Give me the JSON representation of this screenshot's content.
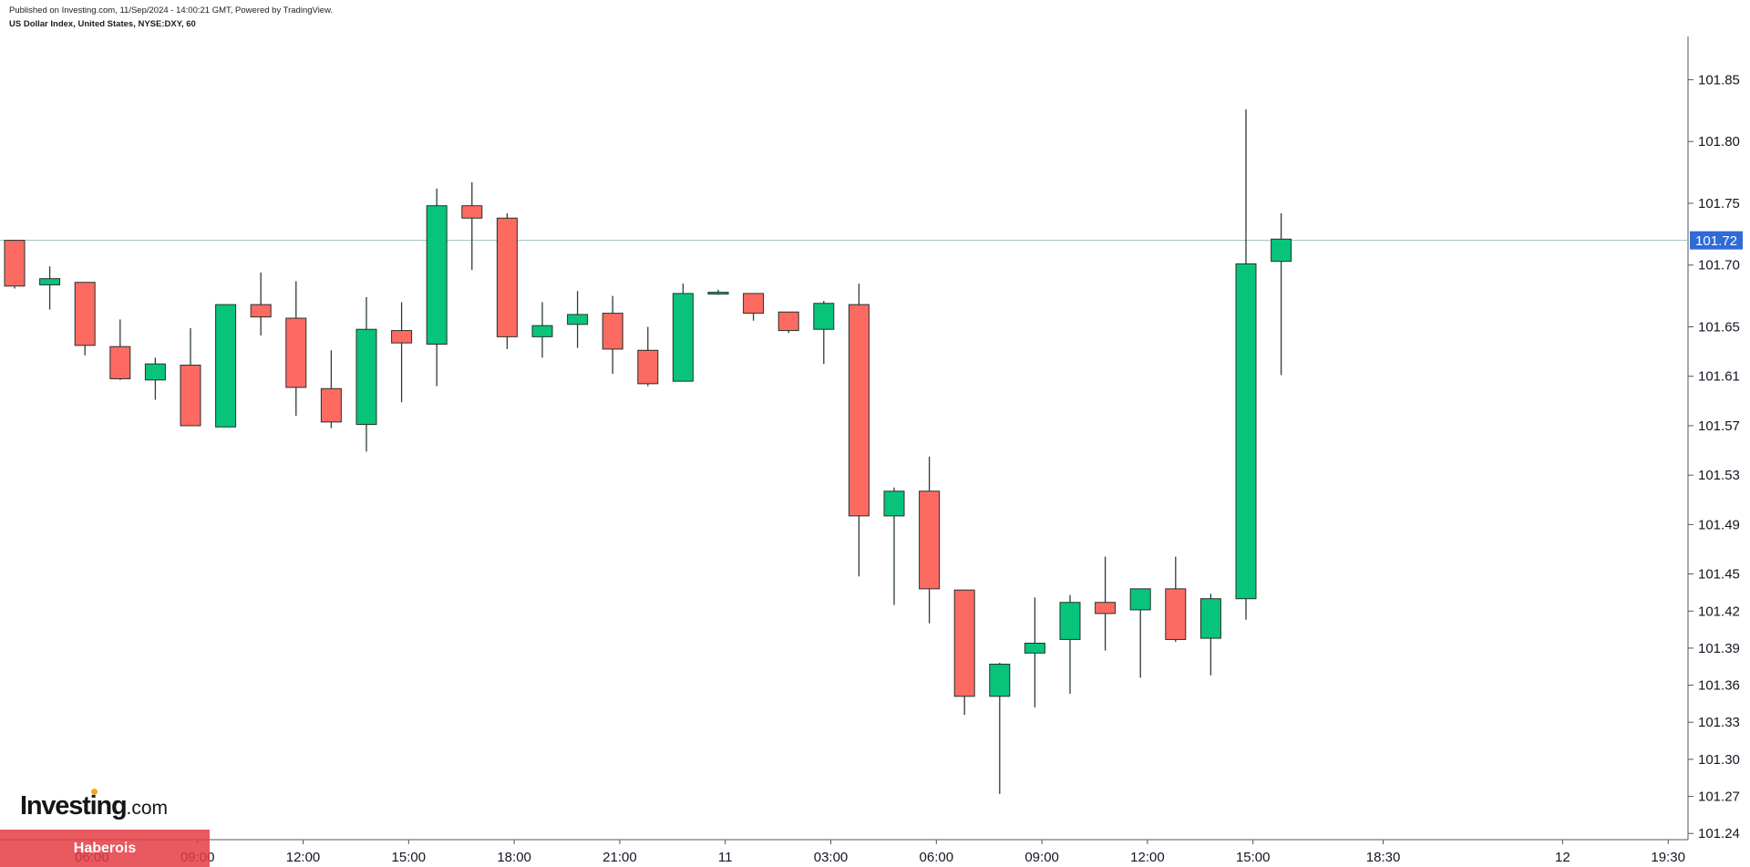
{
  "header": {
    "published": "Published on Investing.com, 11/Sep/2024 - 14:00:21 GMT, Powered by TradingView.",
    "symbol": "US Dollar Index, United States, NYSE:DXY, 60"
  },
  "logo": {
    "main": "Investing",
    "dotcom": ".com"
  },
  "banner": {
    "text": "Haberois"
  },
  "colors": {
    "up": "#08c47a",
    "down": "#fd6a62",
    "wick": "#2c3e35",
    "price_line": "#9fc3bd",
    "price_tag_bg": "#2f6ad7",
    "axis": "#b7bcc4",
    "text": "#131722"
  },
  "chart_data": {
    "type": "candlestick",
    "ylim": [
      101.235,
      101.885
    ],
    "grid": false,
    "last_price": 101.72,
    "last_price_label": "101.72",
    "y_ticks": [
      "101.85",
      "101.80",
      "101.75",
      "101.70",
      "101.65",
      "101.61",
      "101.57",
      "101.53",
      "101.49",
      "101.45",
      "101.42",
      "101.39",
      "101.36",
      "101.33",
      "101.30",
      "101.27",
      "101.24"
    ],
    "x_ticks": [
      {
        "label": "06:00",
        "slot": 2.2
      },
      {
        "label": "09:00",
        "slot": 5.2
      },
      {
        "label": "12:00",
        "slot": 8.2
      },
      {
        "label": "15:00",
        "slot": 11.2
      },
      {
        "label": "18:00",
        "slot": 14.2
      },
      {
        "label": "21:00",
        "slot": 17.2
      },
      {
        "label": "11",
        "slot": 20.2
      },
      {
        "label": "03:00",
        "slot": 23.2
      },
      {
        "label": "06:00",
        "slot": 26.2
      },
      {
        "label": "09:00",
        "slot": 29.2
      },
      {
        "label": "12:00",
        "slot": 32.2
      },
      {
        "label": "15:00",
        "slot": 35.2
      },
      {
        "label": "18:30",
        "slot": 38.9
      },
      {
        "label": "12",
        "slot": 44.0
      },
      {
        "label": "19:30",
        "slot": 47.0
      }
    ],
    "candles": [
      {
        "o": 101.72,
        "h": 101.72,
        "l": 101.681,
        "c": 101.683
      },
      {
        "o": 101.684,
        "h": 101.699,
        "l": 101.664,
        "c": 101.689
      },
      {
        "o": 101.686,
        "h": 101.686,
        "l": 101.627,
        "c": 101.635
      },
      {
        "o": 101.634,
        "h": 101.656,
        "l": 101.607,
        "c": 101.608
      },
      {
        "o": 101.607,
        "h": 101.625,
        "l": 101.591,
        "c": 101.62
      },
      {
        "o": 101.619,
        "h": 101.649,
        "l": 101.57,
        "c": 101.57
      },
      {
        "o": 101.569,
        "h": 101.668,
        "l": 101.569,
        "c": 101.668
      },
      {
        "o": 101.668,
        "h": 101.694,
        "l": 101.643,
        "c": 101.658
      },
      {
        "o": 101.657,
        "h": 101.687,
        "l": 101.578,
        "c": 101.601
      },
      {
        "o": 101.6,
        "h": 101.631,
        "l": 101.568,
        "c": 101.573
      },
      {
        "o": 101.571,
        "h": 101.674,
        "l": 101.549,
        "c": 101.648
      },
      {
        "o": 101.647,
        "h": 101.67,
        "l": 101.589,
        "c": 101.637
      },
      {
        "o": 101.636,
        "h": 101.762,
        "l": 101.602,
        "c": 101.748
      },
      {
        "o": 101.748,
        "h": 101.767,
        "l": 101.696,
        "c": 101.738
      },
      {
        "o": 101.738,
        "h": 101.742,
        "l": 101.632,
        "c": 101.642
      },
      {
        "o": 101.642,
        "h": 101.67,
        "l": 101.625,
        "c": 101.651
      },
      {
        "o": 101.652,
        "h": 101.679,
        "l": 101.633,
        "c": 101.66
      },
      {
        "o": 101.661,
        "h": 101.675,
        "l": 101.612,
        "c": 101.632
      },
      {
        "o": 101.631,
        "h": 101.65,
        "l": 101.602,
        "c": 101.604
      },
      {
        "o": 101.606,
        "h": 101.685,
        "l": 101.606,
        "c": 101.677
      },
      {
        "o": 101.677,
        "h": 101.68,
        "l": 101.676,
        "c": 101.678
      },
      {
        "o": 101.677,
        "h": 101.677,
        "l": 101.655,
        "c": 101.661
      },
      {
        "o": 101.662,
        "h": 101.662,
        "l": 101.645,
        "c": 101.647
      },
      {
        "o": 101.648,
        "h": 101.671,
        "l": 101.62,
        "c": 101.669
      },
      {
        "o": 101.668,
        "h": 101.685,
        "l": 101.448,
        "c": 101.497
      },
      {
        "o": 101.497,
        "h": 101.52,
        "l": 101.425,
        "c": 101.517
      },
      {
        "o": 101.517,
        "h": 101.545,
        "l": 101.41,
        "c": 101.438
      },
      {
        "o": 101.437,
        "h": 101.437,
        "l": 101.336,
        "c": 101.351
      },
      {
        "o": 101.351,
        "h": 101.378,
        "l": 101.272,
        "c": 101.377
      },
      {
        "o": 101.386,
        "h": 101.431,
        "l": 101.342,
        "c": 101.394
      },
      {
        "o": 101.397,
        "h": 101.433,
        "l": 101.353,
        "c": 101.427
      },
      {
        "o": 101.427,
        "h": 101.464,
        "l": 101.388,
        "c": 101.418
      },
      {
        "o": 101.421,
        "h": 101.438,
        "l": 101.366,
        "c": 101.438
      },
      {
        "o": 101.438,
        "h": 101.464,
        "l": 101.395,
        "c": 101.397
      },
      {
        "o": 101.398,
        "h": 101.434,
        "l": 101.368,
        "c": 101.43
      },
      {
        "o": 101.43,
        "h": 101.826,
        "l": 101.413,
        "c": 101.701
      },
      {
        "o": 101.703,
        "h": 101.742,
        "l": 101.611,
        "c": 101.721
      }
    ]
  }
}
